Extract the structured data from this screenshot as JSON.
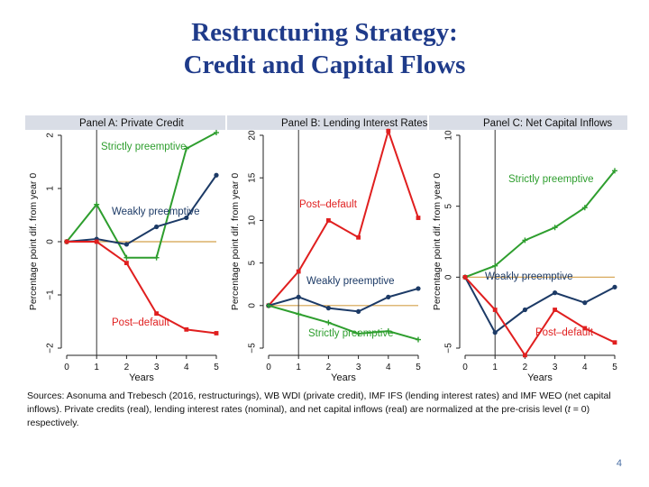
{
  "slide": {
    "title_line1": "Restructuring Strategy:",
    "title_line2": "Credit and Capital Flows",
    "sources_a": "Sources: Asonuma and Trebesch (2016, restructurings), WB WDI (private credit), IMF IFS (lending interest rates) and IMF WEO (net capital inflows). Private credits (real), lending interest rates (nominal), and net capital inflows (real) are normalized at the pre-crisis level (",
    "sources_t": "t",
    "sources_b": " = 0) respectively.",
    "page_number": "4"
  },
  "colors": {
    "green": "#2e9e2e",
    "navy": "#1c3a66",
    "red": "#e01f1f",
    "baseline": "#d4a04a",
    "header_bg": "#d9dde6",
    "axis": "#222222"
  },
  "chart_data": [
    {
      "type": "line",
      "title": "Panel A: Private Credit",
      "xlabel": "Years",
      "ylabel": "Percentage point dif. from year 0",
      "xlim": [
        0,
        5
      ],
      "ylim": [
        -2,
        2
      ],
      "xticks": [
        "0",
        "1",
        "2",
        "3",
        "4",
        "5"
      ],
      "yticks": [
        "-2",
        "-1",
        "0",
        "1",
        "2"
      ],
      "x": [
        0,
        1,
        2,
        3,
        4,
        5
      ],
      "vline": 1,
      "hline": 0,
      "series": [
        {
          "name": "Strictly preemptive",
          "color": "#2e9e2e",
          "values": [
            0,
            0.7,
            -0.3,
            -0.3,
            1.75,
            2.05
          ]
        },
        {
          "name": "Weakly preemptive",
          "color": "#1c3a66",
          "values": [
            0,
            0.05,
            -0.05,
            0.28,
            0.45,
            1.25
          ]
        },
        {
          "name": "Post–default",
          "color": "#e01f1f",
          "values": [
            0,
            0,
            -0.4,
            -1.35,
            -1.65,
            -1.72
          ]
        }
      ]
    },
    {
      "type": "line",
      "title": "Panel B: Lending Interest Rates",
      "xlabel": "Years",
      "ylabel": "Percentage point dif. from year 0",
      "xlim": [
        0,
        5
      ],
      "ylim": [
        -5,
        20
      ],
      "xticks": [
        "0",
        "1",
        "2",
        "3",
        "4",
        "5"
      ],
      "yticks": [
        "-5",
        "0",
        "5",
        "10",
        "15",
        "20"
      ],
      "x": [
        0,
        1,
        2,
        3,
        4,
        5
      ],
      "vline": 1,
      "hline": 0,
      "series": [
        {
          "name": "Post–default",
          "color": "#e01f1f",
          "values": [
            0,
            4,
            10,
            8,
            20.5,
            10.3
          ]
        },
        {
          "name": "Weakly preemptive",
          "color": "#1c3a66",
          "values": [
            0,
            1,
            -0.3,
            -0.7,
            1,
            2
          ]
        },
        {
          "name": "Strictly preemptive",
          "color": "#2e9e2e",
          "values": [
            0,
            -1,
            -2,
            -3.3,
            -3,
            -4
          ]
        }
      ]
    },
    {
      "type": "line",
      "title": "Panel C: Net Capital Inflows",
      "xlabel": "Years",
      "ylabel": "Percentage point dif. from year 0",
      "xlim": [
        0,
        5
      ],
      "ylim": [
        -5,
        10
      ],
      "xticks": [
        "0",
        "1",
        "2",
        "3",
        "4",
        "5"
      ],
      "yticks": [
        "-5",
        "0",
        "5",
        "10"
      ],
      "x": [
        0,
        1,
        2,
        3,
        4,
        5
      ],
      "vline": 1,
      "hline": 0,
      "series": [
        {
          "name": "Strictly preemptive",
          "color": "#2e9e2e",
          "values": [
            0,
            0.8,
            2.6,
            3.5,
            4.9,
            7.5
          ]
        },
        {
          "name": "Weakly preemptive",
          "color": "#1c3a66",
          "values": [
            0,
            -3.9,
            -2.3,
            -1.1,
            -1.8,
            -0.7
          ]
        },
        {
          "name": "Post–default",
          "color": "#e01f1f",
          "values": [
            0,
            -2.3,
            -5.5,
            -2.3,
            -3.6,
            -4.6
          ]
        }
      ]
    }
  ]
}
